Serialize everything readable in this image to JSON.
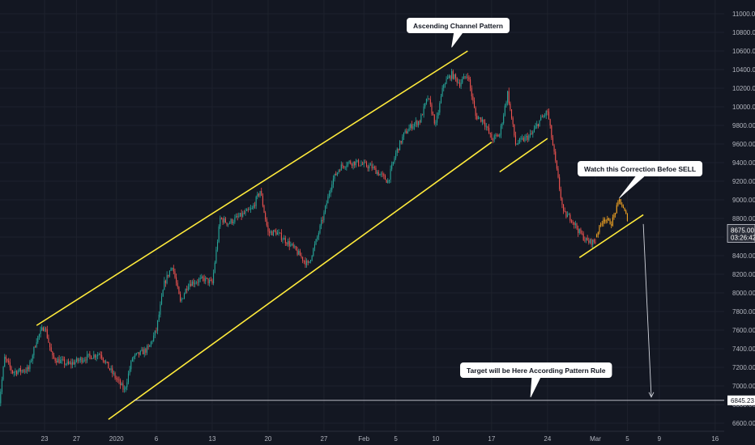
{
  "chart_data": {
    "type": "candlestick",
    "title": "",
    "y_axis": {
      "side": "right",
      "min": 6550,
      "max": 11150,
      "ticks": [
        "11000.00",
        "10800.00",
        "10600.00",
        "10400.00",
        "10200.00",
        "10000.00",
        "9800.00",
        "9600.00",
        "9400.00",
        "9200.00",
        "9000.00",
        "8800.00",
        "8600.00",
        "8400.00",
        "8200.00",
        "8000.00",
        "7800.00",
        "7600.00",
        "7400.00",
        "7200.00",
        "7000.00",
        "6800.00",
        "6600.00"
      ],
      "tick_values": [
        11000,
        10800,
        10600,
        10400,
        10200,
        10000,
        9800,
        9600,
        9400,
        9200,
        9000,
        8800,
        8600,
        8400,
        8200,
        8000,
        7800,
        7600,
        7400,
        7200,
        7000,
        6800,
        6600
      ]
    },
    "x_axis": {
      "start": "2019-12-17",
      "end": "2020-03-17",
      "ticks": [
        {
          "label": "23",
          "date": "2019-12-23"
        },
        {
          "label": "27",
          "date": "2019-12-27"
        },
        {
          "label": "2020",
          "date": "2020-01-01"
        },
        {
          "label": "6",
          "date": "2020-01-06"
        },
        {
          "label": "13",
          "date": "2020-01-13"
        },
        {
          "label": "20",
          "date": "2020-01-20"
        },
        {
          "label": "27",
          "date": "2020-01-27"
        },
        {
          "label": "Feb",
          "date": "2020-02-01"
        },
        {
          "label": "5",
          "date": "2020-02-05"
        },
        {
          "label": "10",
          "date": "2020-02-10"
        },
        {
          "label": "17",
          "date": "2020-02-17"
        },
        {
          "label": "24",
          "date": "2020-02-24"
        },
        {
          "label": "Mar",
          "date": "2020-03-01"
        },
        {
          "label": "5",
          "date": "2020-03-05"
        },
        {
          "label": "9",
          "date": "2020-03-09"
        },
        {
          "label": "16",
          "date": "2020-03-16"
        }
      ]
    },
    "price_path": [
      {
        "date": "2019-12-17",
        "price": 6600
      },
      {
        "date": "2019-12-18",
        "price": 7300
      },
      {
        "date": "2019-12-19",
        "price": 7150
      },
      {
        "date": "2019-12-21",
        "price": 7180
      },
      {
        "date": "2019-12-22",
        "price": 7500
      },
      {
        "date": "2019-12-23",
        "price": 7650
      },
      {
        "date": "2019-12-24",
        "price": 7300
      },
      {
        "date": "2019-12-26",
        "price": 7230
      },
      {
        "date": "2019-12-28",
        "price": 7300
      },
      {
        "date": "2019-12-30",
        "price": 7350
      },
      {
        "date": "2019-12-31",
        "price": 7200
      },
      {
        "date": "2020-01-02",
        "price": 6950
      },
      {
        "date": "2020-01-03",
        "price": 7300
      },
      {
        "date": "2020-01-05",
        "price": 7400
      },
      {
        "date": "2020-01-06",
        "price": 7600
      },
      {
        "date": "2020-01-07",
        "price": 8100
      },
      {
        "date": "2020-01-08",
        "price": 8300
      },
      {
        "date": "2020-01-09",
        "price": 7900
      },
      {
        "date": "2020-01-10",
        "price": 8100
      },
      {
        "date": "2020-01-12",
        "price": 8150
      },
      {
        "date": "2020-01-13",
        "price": 8100
      },
      {
        "date": "2020-01-14",
        "price": 8800
      },
      {
        "date": "2020-01-15",
        "price": 8750
      },
      {
        "date": "2020-01-16",
        "price": 8800
      },
      {
        "date": "2020-01-18",
        "price": 8900
      },
      {
        "date": "2020-01-19",
        "price": 9100
      },
      {
        "date": "2020-01-20",
        "price": 8650
      },
      {
        "date": "2020-01-21",
        "price": 8650
      },
      {
        "date": "2020-01-23",
        "price": 8500
      },
      {
        "date": "2020-01-24",
        "price": 8400
      },
      {
        "date": "2020-01-25",
        "price": 8300
      },
      {
        "date": "2020-01-26",
        "price": 8550
      },
      {
        "date": "2020-01-27",
        "price": 8850
      },
      {
        "date": "2020-01-28",
        "price": 9200
      },
      {
        "date": "2020-01-29",
        "price": 9350
      },
      {
        "date": "2020-01-30",
        "price": 9400
      },
      {
        "date": "2020-01-31",
        "price": 9400
      },
      {
        "date": "2020-02-02",
        "price": 9350
      },
      {
        "date": "2020-02-04",
        "price": 9200
      },
      {
        "date": "2020-02-05",
        "price": 9500
      },
      {
        "date": "2020-02-06",
        "price": 9700
      },
      {
        "date": "2020-02-07",
        "price": 9800
      },
      {
        "date": "2020-02-08",
        "price": 9850
      },
      {
        "date": "2020-02-09",
        "price": 10100
      },
      {
        "date": "2020-02-10",
        "price": 9800
      },
      {
        "date": "2020-02-11",
        "price": 10250
      },
      {
        "date": "2020-02-12",
        "price": 10350
      },
      {
        "date": "2020-02-13",
        "price": 10250
      },
      {
        "date": "2020-02-14",
        "price": 10350
      },
      {
        "date": "2020-02-15",
        "price": 9900
      },
      {
        "date": "2020-02-16",
        "price": 9850
      },
      {
        "date": "2020-02-17",
        "price": 9650
      },
      {
        "date": "2020-02-18",
        "price": 9700
      },
      {
        "date": "2020-02-19",
        "price": 10150
      },
      {
        "date": "2020-02-20",
        "price": 9600
      },
      {
        "date": "2020-02-21",
        "price": 9650
      },
      {
        "date": "2020-02-22",
        "price": 9700
      },
      {
        "date": "2020-02-23",
        "price": 9850
      },
      {
        "date": "2020-02-24",
        "price": 9950
      },
      {
        "date": "2020-02-25",
        "price": 9400
      },
      {
        "date": "2020-02-26",
        "price": 8850
      },
      {
        "date": "2020-02-27",
        "price": 8800
      },
      {
        "date": "2020-02-28",
        "price": 8650
      },
      {
        "date": "2020-02-29",
        "price": 8550
      },
      {
        "date": "2020-03-01",
        "price": 8550
      }
    ],
    "projection_path": [
      {
        "date": "2020-03-01",
        "price": 8600
      },
      {
        "date": "2020-03-02",
        "price": 8800
      },
      {
        "date": "2020-03-03",
        "price": 8750
      },
      {
        "date": "2020-03-04",
        "price": 9000
      },
      {
        "date": "2020-03-05",
        "price": 8800
      }
    ],
    "trendlines": [
      {
        "name": "channel-upper",
        "from": {
          "date": "2019-12-22",
          "price": 7650
        },
        "to": {
          "date": "2020-02-14",
          "price": 10600
        }
      },
      {
        "name": "channel-lower",
        "from": {
          "date": "2019-12-31",
          "price": 6640
        },
        "to": {
          "date": "2020-02-17",
          "price": 9620
        }
      },
      {
        "name": "correction-line-1",
        "from": {
          "date": "2020-02-18",
          "price": 9300
        },
        "to": {
          "date": "2020-02-24",
          "price": 9660
        }
      },
      {
        "name": "correction-line-2",
        "from": {
          "date": "2020-02-28",
          "price": 8380
        },
        "to": {
          "date": "2020-03-07",
          "price": 8840
        }
      }
    ],
    "arrow": {
      "from": {
        "date": "2020-03-07",
        "price": 8740
      },
      "to": {
        "date": "2020-03-08",
        "price": 6880
      }
    },
    "horizontal_line": {
      "price": 6845.23
    },
    "price_tags": [
      {
        "label": "8675.00",
        "sub": "03:26:42",
        "price": 8675
      },
      {
        "label": "6845.23",
        "price": 6845.23
      }
    ],
    "annotations": [
      {
        "name": "annotation-ascending-channel",
        "text": "Ascending Channel Pattern",
        "anchor": {
          "date": "2020-02-12",
          "price": 10640
        }
      },
      {
        "name": "annotation-watch-correction",
        "text": "Watch this Correction Befoe SELL",
        "anchor": {
          "date": "2020-03-04",
          "price": 9020
        }
      },
      {
        "name": "annotation-target",
        "text": "Target will be Here According Pattern Rule",
        "anchor": {
          "date": "2020-02-20",
          "price": 6870
        }
      }
    ],
    "colors": {
      "background": "#131722",
      "grid": "#1e222d",
      "up": "#26a69a",
      "down": "#ef5350",
      "trendline": "#ffeb3b",
      "projection": "#f5a623",
      "axis_text": "#b2b5be",
      "callout_bg": "#ffffff",
      "price_tag_dark": "#131722"
    }
  }
}
